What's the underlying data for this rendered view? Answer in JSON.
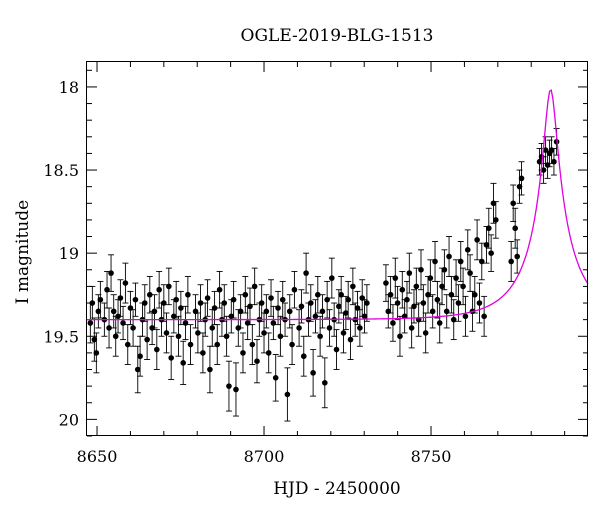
{
  "chart_data": {
    "type": "scatter",
    "title": "OGLE-2019-BLG-1513",
    "xlabel": "HJD - 2450000",
    "ylabel": "I magnitude",
    "xlim": [
      8647,
      8797
    ],
    "ylim": [
      20.1,
      17.85
    ],
    "y_inverted": true,
    "xticks_major": [
      8650,
      8700,
      8750
    ],
    "xticks_labels": [
      "8650",
      "8700",
      "8750"
    ],
    "yticks_major": [
      18,
      18.5,
      19,
      19.5,
      20
    ],
    "yticks_labels": [
      "18",
      "18.5",
      "19",
      "19.5",
      "20"
    ],
    "grid": false,
    "colors": {
      "data": "#000000",
      "model": "#e000e0"
    },
    "series": [
      {
        "type": "errorbar-scatter",
        "points": [
          [
            8648.0,
            19.42,
            0.12
          ],
          [
            8648.6,
            19.3,
            0.1
          ],
          [
            8649.2,
            19.52,
            0.13
          ],
          [
            8649.8,
            19.6,
            0.12
          ],
          [
            8650.4,
            19.35,
            0.1
          ],
          [
            8651.0,
            19.28,
            0.11
          ],
          [
            8652.2,
            19.4,
            0.1
          ],
          [
            8653.0,
            19.22,
            0.11
          ],
          [
            8653.6,
            19.45,
            0.12
          ],
          [
            8654.2,
            19.12,
            0.11
          ],
          [
            8655.0,
            19.35,
            0.1
          ],
          [
            8655.6,
            19.5,
            0.12
          ],
          [
            8656.3,
            19.38,
            0.1
          ],
          [
            8657.0,
            19.27,
            0.11
          ],
          [
            8657.8,
            19.42,
            0.1
          ],
          [
            8658.5,
            19.18,
            0.12
          ],
          [
            8659.2,
            19.55,
            0.12
          ],
          [
            8660.0,
            19.33,
            0.1
          ],
          [
            8660.8,
            19.45,
            0.11
          ],
          [
            8661.5,
            19.28,
            0.1
          ],
          [
            8662.2,
            19.7,
            0.14
          ],
          [
            8662.9,
            19.62,
            0.12
          ],
          [
            8663.6,
            19.4,
            0.1
          ],
          [
            8664.3,
            19.3,
            0.11
          ],
          [
            8665.0,
            19.52,
            0.12
          ],
          [
            8665.8,
            19.25,
            0.11
          ],
          [
            8666.5,
            19.45,
            0.1
          ],
          [
            8667.2,
            19.35,
            0.1
          ],
          [
            8667.9,
            19.58,
            0.12
          ],
          [
            8668.6,
            19.22,
            0.11
          ],
          [
            8669.3,
            19.4,
            0.1
          ],
          [
            8670.0,
            19.3,
            0.11
          ],
          [
            8670.8,
            19.48,
            0.12
          ],
          [
            8671.5,
            19.2,
            0.11
          ],
          [
            8672.2,
            19.63,
            0.13
          ],
          [
            8673.0,
            19.38,
            0.1
          ],
          [
            8673.7,
            19.28,
            0.11
          ],
          [
            8674.4,
            19.5,
            0.12
          ],
          [
            8675.1,
            19.33,
            0.1
          ],
          [
            8675.8,
            19.66,
            0.13
          ],
          [
            8676.5,
            19.42,
            0.1
          ],
          [
            8677.2,
            19.25,
            0.11
          ],
          [
            8678.0,
            19.55,
            0.12
          ],
          [
            8679.5,
            19.35,
            0.1
          ],
          [
            8680.2,
            19.48,
            0.12
          ],
          [
            8681.0,
            19.3,
            0.11
          ],
          [
            8681.7,
            19.6,
            0.12
          ],
          [
            8682.4,
            19.4,
            0.1
          ],
          [
            8683.1,
            19.27,
            0.11
          ],
          [
            8683.8,
            19.7,
            0.14
          ],
          [
            8684.5,
            19.45,
            0.11
          ],
          [
            8685.2,
            19.33,
            0.1
          ],
          [
            8686.0,
            19.55,
            0.12
          ],
          [
            8686.7,
            19.22,
            0.11
          ],
          [
            8687.4,
            19.4,
            0.1
          ],
          [
            8688.1,
            19.3,
            0.11
          ],
          [
            8688.8,
            19.5,
            0.12
          ],
          [
            8689.5,
            19.8,
            0.15
          ],
          [
            8690.2,
            19.38,
            0.1
          ],
          [
            8690.9,
            19.28,
            0.11
          ],
          [
            8691.6,
            19.82,
            0.16
          ],
          [
            8692.3,
            19.45,
            0.11
          ],
          [
            8693.0,
            19.35,
            0.1
          ],
          [
            8693.7,
            19.6,
            0.12
          ],
          [
            8694.4,
            19.25,
            0.11
          ],
          [
            8695.1,
            19.42,
            0.1
          ],
          [
            8695.8,
            19.32,
            0.11
          ],
          [
            8696.5,
            19.55,
            0.12
          ],
          [
            8697.2,
            19.2,
            0.11
          ],
          [
            8697.9,
            19.65,
            0.13
          ],
          [
            8698.6,
            19.4,
            0.1
          ],
          [
            8699.3,
            19.3,
            0.11
          ],
          [
            8700.0,
            19.48,
            0.12
          ],
          [
            8700.7,
            19.35,
            0.1
          ],
          [
            8701.4,
            19.6,
            0.12
          ],
          [
            8702.1,
            19.27,
            0.11
          ],
          [
            8702.8,
            19.42,
            0.1
          ],
          [
            8703.5,
            19.75,
            0.14
          ],
          [
            8704.2,
            19.33,
            0.1
          ],
          [
            8704.9,
            19.5,
            0.12
          ],
          [
            8705.6,
            19.28,
            0.11
          ],
          [
            8706.3,
            19.4,
            0.1
          ],
          [
            8707.0,
            19.85,
            0.16
          ],
          [
            8707.7,
            19.35,
            0.1
          ],
          [
            8708.4,
            19.55,
            0.12
          ],
          [
            8709.1,
            19.22,
            0.11
          ],
          [
            8710.5,
            19.45,
            0.11
          ],
          [
            8711.2,
            19.32,
            0.1
          ],
          [
            8711.9,
            19.62,
            0.12
          ],
          [
            8712.6,
            19.12,
            0.12
          ],
          [
            8713.3,
            19.4,
            0.1
          ],
          [
            8714.0,
            19.3,
            0.11
          ],
          [
            8714.7,
            19.72,
            0.14
          ],
          [
            8715.4,
            19.38,
            0.1
          ],
          [
            8716.1,
            19.25,
            0.11
          ],
          [
            8716.8,
            19.5,
            0.12
          ],
          [
            8717.5,
            19.35,
            0.1
          ],
          [
            8718.2,
            19.78,
            0.15
          ],
          [
            8718.9,
            19.28,
            0.11
          ],
          [
            8719.6,
            19.45,
            0.11
          ],
          [
            8720.3,
            19.15,
            0.12
          ],
          [
            8721.0,
            19.4,
            0.1
          ],
          [
            8721.7,
            19.58,
            0.12
          ],
          [
            8722.4,
            19.32,
            0.1
          ],
          [
            8723.1,
            19.25,
            0.11
          ],
          [
            8723.8,
            19.48,
            0.12
          ],
          [
            8724.5,
            19.36,
            0.1
          ],
          [
            8725.2,
            19.28,
            0.11
          ],
          [
            8725.9,
            19.52,
            0.12
          ],
          [
            8726.6,
            19.2,
            0.11
          ],
          [
            8727.3,
            19.4,
            0.1
          ],
          [
            8728.0,
            19.33,
            0.1
          ],
          [
            8728.7,
            19.45,
            0.11
          ],
          [
            8729.4,
            19.27,
            0.11
          ],
          [
            8730.1,
            19.38,
            0.1
          ],
          [
            8730.8,
            19.3,
            0.11
          ],
          [
            8736.5,
            19.18,
            0.11
          ],
          [
            8737.2,
            19.35,
            0.1
          ],
          [
            8737.9,
            19.25,
            0.11
          ],
          [
            8738.6,
            19.42,
            0.11
          ],
          [
            8739.3,
            19.15,
            0.12
          ],
          [
            8740.0,
            19.3,
            0.1
          ],
          [
            8740.7,
            19.5,
            0.12
          ],
          [
            8741.4,
            19.22,
            0.11
          ],
          [
            8742.1,
            19.38,
            0.1
          ],
          [
            8742.8,
            19.28,
            0.11
          ],
          [
            8743.5,
            19.12,
            0.12
          ],
          [
            8744.2,
            19.45,
            0.12
          ],
          [
            8744.9,
            19.32,
            0.1
          ],
          [
            8745.6,
            19.2,
            0.11
          ],
          [
            8746.3,
            19.4,
            0.1
          ],
          [
            8747.0,
            19.1,
            0.12
          ],
          [
            8747.7,
            19.3,
            0.11
          ],
          [
            8748.4,
            19.48,
            0.12
          ],
          [
            8749.1,
            19.25,
            0.11
          ],
          [
            8749.8,
            19.15,
            0.11
          ],
          [
            8750.5,
            19.35,
            0.1
          ],
          [
            8751.2,
            19.05,
            0.12
          ],
          [
            8751.9,
            19.28,
            0.11
          ],
          [
            8752.6,
            19.42,
            0.12
          ],
          [
            8753.3,
            19.2,
            0.11
          ],
          [
            8754.0,
            19.1,
            0.12
          ],
          [
            8754.7,
            19.35,
            0.1
          ],
          [
            8755.4,
            19.02,
            0.12
          ],
          [
            8756.1,
            19.25,
            0.11
          ],
          [
            8756.8,
            19.4,
            0.12
          ],
          [
            8757.5,
            19.15,
            0.11
          ],
          [
            8758.2,
            19.3,
            0.11
          ],
          [
            8758.9,
            19.05,
            0.12
          ],
          [
            8759.6,
            19.2,
            0.11
          ],
          [
            8760.3,
            19.38,
            0.12
          ],
          [
            8761.0,
            18.98,
            0.12
          ],
          [
            8761.7,
            19.12,
            0.11
          ],
          [
            8762.4,
            19.35,
            0.12
          ],
          [
            8763.1,
            19.25,
            0.11
          ],
          [
            8763.8,
            18.92,
            0.12
          ],
          [
            8764.5,
            19.3,
            0.12
          ],
          [
            8765.2,
            19.05,
            0.11
          ],
          [
            8765.9,
            19.38,
            0.12
          ],
          [
            8766.6,
            18.95,
            0.11
          ],
          [
            8767.3,
            18.85,
            0.12
          ],
          [
            8768.0,
            19.0,
            0.11
          ],
          [
            8768.7,
            18.7,
            0.12
          ],
          [
            8769.4,
            18.8,
            0.11
          ],
          [
            8774.0,
            19.05,
            0.12
          ],
          [
            8774.6,
            18.7,
            0.11
          ],
          [
            8775.2,
            18.85,
            0.12
          ],
          [
            8775.8,
            19.02,
            0.1
          ],
          [
            8776.5,
            18.6,
            0.1
          ],
          [
            8777.1,
            18.55,
            0.1
          ],
          [
            8782.5,
            18.45,
            0.08
          ],
          [
            8783.1,
            18.42,
            0.08
          ],
          [
            8783.7,
            18.5,
            0.08
          ],
          [
            8784.3,
            18.38,
            0.08
          ],
          [
            8784.9,
            18.47,
            0.08
          ],
          [
            8785.5,
            18.4,
            0.08
          ],
          [
            8786.1,
            18.38,
            0.08
          ],
          [
            8786.8,
            18.45,
            0.08
          ],
          [
            8787.6,
            18.33,
            0.08
          ]
        ]
      },
      {
        "type": "model-curve",
        "t0": 8785.8,
        "u0": 0.12,
        "tE": 15.5,
        "baseline_mag": 19.4,
        "blend_fs": 0.35
      }
    ]
  }
}
